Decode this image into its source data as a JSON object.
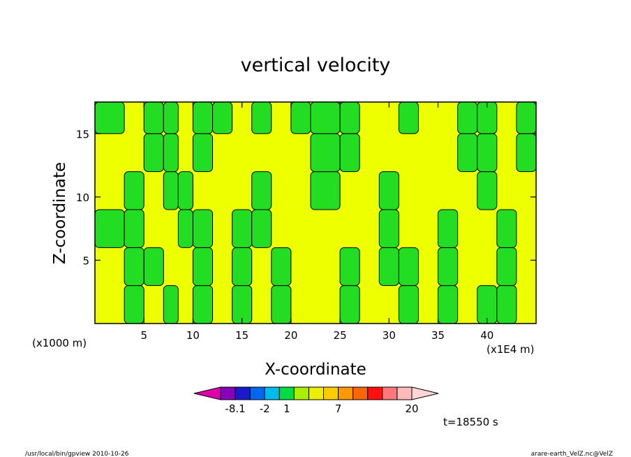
{
  "chart_data": {
    "type": "heatmap",
    "title": "vertical velocity",
    "xlabel": "X-coordinate",
    "ylabel": "Z-coordinate",
    "x_unit_left": "(x1000 m)",
    "x_unit_right": "(x1E4 m)",
    "xlim": [
      0,
      45
    ],
    "ylim": [
      0,
      17.5
    ],
    "x_ticks": [
      5,
      10,
      15,
      20,
      25,
      30,
      35,
      40
    ],
    "y_ticks": [
      5,
      10,
      15
    ],
    "time_label": "t=18550 s",
    "colorbar": {
      "colors": [
        "#dd00aa",
        "#8800bb",
        "#1a1acc",
        "#0066ee",
        "#00bbee",
        "#00dd44",
        "#aaee00",
        "#eeee00",
        "#ffcc00",
        "#ff9900",
        "#ff6600",
        "#ff1111",
        "#ff7777",
        "#ffbbbb",
        "#ffd6d6"
      ],
      "tick_labels": [
        {
          "label": "-8.1",
          "boundary": 1
        },
        {
          "label": "-2",
          "boundary": 3
        },
        {
          "label": "1",
          "boundary": 4.5
        },
        {
          "label": "7",
          "boundary": 8
        },
        {
          "label": "20",
          "boundary": 13
        }
      ]
    },
    "field_colors": {
      "positive": "#eeff00",
      "negative": "#22dd22",
      "contour": "#000000"
    },
    "field_sketch": {
      "x_breaks": [
        0,
        3,
        5,
        7,
        8.5,
        10,
        12,
        14,
        16,
        18,
        20,
        22,
        25,
        27,
        29,
        31,
        33,
        35,
        37,
        39,
        41,
        43,
        45
      ],
      "z_breaks": [
        0,
        3,
        6,
        9,
        12,
        15,
        17.5
      ],
      "signs": [
        [
          1,
          0,
          1,
          0,
          1,
          0,
          1,
          0,
          1,
          0,
          1,
          1,
          0,
          1,
          1,
          0,
          1,
          0,
          1,
          0,
          0,
          1
        ],
        [
          1,
          0,
          0,
          1,
          1,
          0,
          1,
          0,
          1,
          0,
          1,
          1,
          0,
          1,
          0,
          0,
          1,
          0,
          1,
          1,
          0,
          1
        ],
        [
          0,
          0,
          1,
          1,
          0,
          0,
          1,
          0,
          0,
          1,
          1,
          1,
          1,
          1,
          0,
          1,
          1,
          0,
          1,
          1,
          0,
          1
        ],
        [
          1,
          0,
          1,
          0,
          0,
          1,
          1,
          1,
          0,
          1,
          1,
          0,
          1,
          1,
          0,
          1,
          1,
          1,
          1,
          0,
          1,
          1
        ],
        [
          1,
          1,
          0,
          0,
          1,
          0,
          1,
          1,
          1,
          1,
          1,
          0,
          0,
          1,
          1,
          1,
          1,
          1,
          0,
          0,
          1,
          0
        ],
        [
          0,
          1,
          0,
          0,
          1,
          0,
          0,
          1,
          0,
          1,
          0,
          0,
          0,
          1,
          1,
          0,
          1,
          1,
          0,
          0,
          1,
          0
        ]
      ]
    }
  },
  "footer": {
    "left": "/usr/local/bin/gpview  2010-10-26",
    "right": "arare-earth_VelZ.nc@VelZ"
  }
}
